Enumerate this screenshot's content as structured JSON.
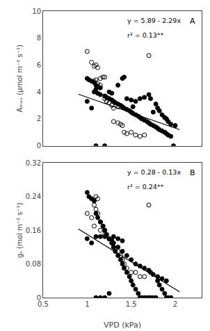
{
  "chart_data": [
    {
      "type": "scatter",
      "ylabel": "Aₘₐₓ (μmol m⁻² s⁻¹)",
      "annotations": [
        "y = 5.89 - 2.29x",
        "r² = 0.13**",
        "A"
      ],
      "xlim": [
        0.5,
        2.3
      ],
      "xticks": [
        0.5,
        1,
        1.5,
        2
      ],
      "ylim": [
        0,
        10
      ],
      "yticks": [
        0,
        2,
        4,
        6,
        8,
        10
      ],
      "grid": false,
      "tick_labels": "y",
      "series": [
        {
          "type": "scatter",
          "marker": "circle-open",
          "color": "#000000",
          "x": [
            1.0,
            1.05,
            1.08,
            1.1,
            1.12,
            1.15,
            1.18,
            1.2,
            1.1,
            1.08,
            1.12,
            1.15,
            1.2,
            1.22,
            1.25,
            1.28,
            1.3,
            1.35,
            1.3,
            1.35,
            1.38,
            1.4,
            1.42,
            1.45,
            1.5,
            1.55,
            1.6,
            1.65,
            1.7
          ],
          "values": [
            7.0,
            6.2,
            5.9,
            6.0,
            5.8,
            5.0,
            5.1,
            5.1,
            4.9,
            4.8,
            4.6,
            4.5,
            3.5,
            3.3,
            3.2,
            3.0,
            2.8,
            2.9,
            1.8,
            1.7,
            1.6,
            1.5,
            1.0,
            0.9,
            1.0,
            0.8,
            0.7,
            0.8,
            6.7
          ]
        },
        {
          "type": "scatter",
          "marker": "circle",
          "color": "#000000",
          "x": [
            1.0,
            1.02,
            1.05,
            1.08,
            1.1,
            1.12,
            1.15,
            1.1,
            1.08,
            1.12,
            1.15,
            1.2,
            1.22,
            1.25,
            1.28,
            1.3,
            1.32,
            1.35,
            1.38,
            1.4,
            1.42,
            1.45,
            1.48,
            1.5,
            1.52,
            1.55,
            1.58,
            1.6,
            1.62,
            1.65,
            1.68,
            1.7,
            1.72,
            1.75,
            1.78,
            1.8,
            1.82,
            1.85,
            1.88,
            1.9,
            1.92,
            1.95,
            1.0,
            1.05,
            1.1,
            1.2,
            1.25,
            1.28,
            1.35,
            1.4,
            1.42,
            1.45,
            1.5,
            1.52,
            1.55,
            1.6,
            1.65,
            1.7,
            1.72,
            1.75,
            1.78,
            1.8,
            1.82,
            1.85,
            1.88,
            1.9,
            1.92,
            1.95,
            1.98,
            2.0
          ],
          "values": [
            5.0,
            4.9,
            4.8,
            4.7,
            4.5,
            4.4,
            4.3,
            4.2,
            4.0,
            3.9,
            3.8,
            3.7,
            3.6,
            3.5,
            3.4,
            3.3,
            3.2,
            3.1,
            3.0,
            2.9,
            2.8,
            2.7,
            2.6,
            2.5,
            2.4,
            2.3,
            2.2,
            2.1,
            2.0,
            1.9,
            1.8,
            1.7,
            1.6,
            1.5,
            1.4,
            1.3,
            1.2,
            1.1,
            1.0,
            0.9,
            0.8,
            0.7,
            3.3,
            2.8,
            0.0,
            0.0,
            4.0,
            3.9,
            4.5,
            5.0,
            5.1,
            3.5,
            3.4,
            2.9,
            3.3,
            3.5,
            3.6,
            3.8,
            3.5,
            2.5,
            3.1,
            2.8,
            2.6,
            2.3,
            2.1,
            2.0,
            1.8,
            1.6,
            0.0,
            1.5
          ]
        },
        {
          "type": "line",
          "line_style": "solid",
          "color": "#000000",
          "x": [
            0.9,
            2.05
          ],
          "values": [
            3.829,
            1.1955
          ]
        }
      ]
    },
    {
      "type": "scatter",
      "xlabel": "VPD (kPa)",
      "ylabel": "gₛ (mol m⁻² s⁻¹)",
      "annotations": [
        "y = 0.28 - 0.13x",
        "r² = 0.24**",
        "B"
      ],
      "xlim": [
        0.5,
        2.3
      ],
      "xticks": [
        0.5,
        1,
        1.5,
        2
      ],
      "ylim": [
        0,
        0.32
      ],
      "yticks": [
        0,
        0.08,
        0.16,
        0.24,
        0.32
      ],
      "grid": false,
      "series": [
        {
          "type": "scatter",
          "marker": "circle-open",
          "color": "#000000",
          "x": [
            1.0,
            1.05,
            1.08,
            1.1,
            1.12,
            1.15,
            1.18,
            1.2,
            1.22,
            1.25,
            1.28,
            1.3,
            1.35,
            1.38,
            1.4,
            1.42,
            1.45,
            1.5,
            1.55,
            1.6,
            1.65,
            1.7,
            1.1,
            1.12,
            1.08,
            1.15,
            1.2
          ],
          "values": [
            0.2,
            0.19,
            0.22,
            0.21,
            0.2,
            0.18,
            0.17,
            0.16,
            0.15,
            0.14,
            0.13,
            0.12,
            0.11,
            0.1,
            0.09,
            0.08,
            0.07,
            0.06,
            0.06,
            0.05,
            0.05,
            0.22,
            0.24,
            0.235,
            0.17,
            0.16,
            0.15
          ]
        },
        {
          "type": "scatter",
          "marker": "circle",
          "color": "#000000",
          "x": [
            1.0,
            1.02,
            1.05,
            1.08,
            1.1,
            1.12,
            1.15,
            1.18,
            1.2,
            1.22,
            1.25,
            1.28,
            1.3,
            1.32,
            1.35,
            1.38,
            1.4,
            1.42,
            1.45,
            1.48,
            1.5,
            1.52,
            1.55,
            1.58,
            1.6,
            1.62,
            1.65,
            1.68,
            1.7,
            1.72,
            1.75,
            1.78,
            1.8,
            1.82,
            1.85,
            1.88,
            1.9,
            1.92,
            1.95,
            1.0,
            1.05,
            1.1,
            1.15,
            1.2,
            1.25,
            1.28,
            1.3,
            1.35,
            1.4,
            1.45,
            1.5,
            1.55,
            1.6,
            1.65,
            1.7,
            1.72,
            1.75,
            1.8,
            1.85,
            1.9,
            1.1,
            1.15,
            1.2,
            1.25,
            1.3,
            1.35,
            1.4
          ],
          "values": [
            0.25,
            0.24,
            0.235,
            0.23,
            0.2,
            0.19,
            0.18,
            0.17,
            0.16,
            0.15,
            0.14,
            0.13,
            0.12,
            0.11,
            0.1,
            0.09,
            0.08,
            0.07,
            0.06,
            0.05,
            0.04,
            0.03,
            0.02,
            0.01,
            0.0,
            0.0,
            0.0,
            0.0,
            0.0,
            0.0,
            0.0,
            0.0,
            0.04,
            0.03,
            0.02,
            0.01,
            0.0,
            0.0,
            0.0,
            0.14,
            0.13,
            0.145,
            0.145,
            0.145,
            0.14,
            0.135,
            0.13,
            0.12,
            0.11,
            0.1,
            0.09,
            0.08,
            0.075,
            0.07,
            0.065,
            0.06,
            0.055,
            0.05,
            0.045,
            0.04,
            0.0,
            0.0,
            0.0,
            0.01,
            0.145,
            0.14,
            0.135
          ]
        },
        {
          "type": "line",
          "line_style": "solid",
          "color": "#000000",
          "x": [
            0.9,
            2.05
          ],
          "values": [
            0.163,
            0.0135
          ]
        }
      ]
    }
  ]
}
